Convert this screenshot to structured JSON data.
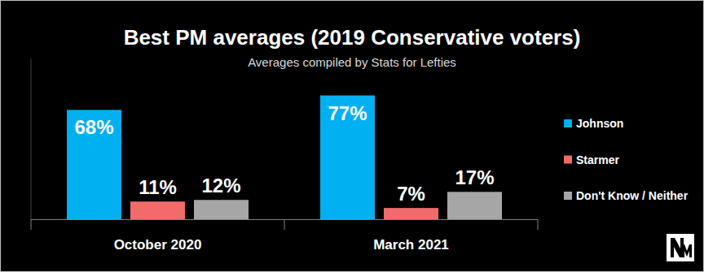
{
  "chart_data": {
    "type": "bar",
    "title": "Best PM averages (2019 Conservative voters)",
    "subtitle": "Averages compiled by Stats for Lefties",
    "categories": [
      "October 2020",
      "March 2021"
    ],
    "series": [
      {
        "name": "Johnson",
        "color": "#00b0f0",
        "values": [
          68,
          77
        ],
        "value_labels": [
          "68%",
          "77%"
        ]
      },
      {
        "name": "Starmer",
        "color": "#f26b6b",
        "values": [
          11,
          7
        ],
        "value_labels": [
          "11%",
          "7%"
        ]
      },
      {
        "name": "Don't Know / Neither",
        "color": "#a6a6a6",
        "values": [
          12,
          17
        ],
        "value_labels": [
          "12%",
          "17%"
        ]
      }
    ],
    "ylim": [
      0,
      100
    ],
    "data_labels": true,
    "tick_labels": "x",
    "grid": false,
    "legend": "right"
  }
}
